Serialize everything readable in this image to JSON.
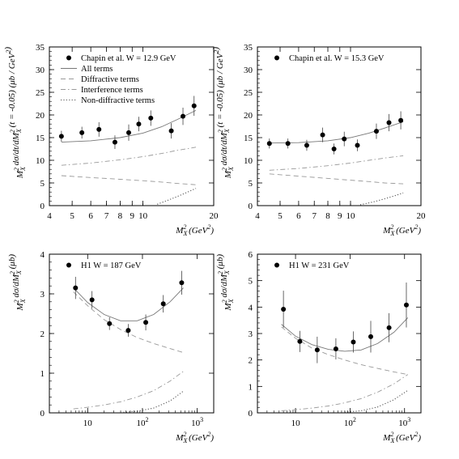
{
  "chart_data": [
    {
      "type": "scatter",
      "panel": "top-left",
      "xscale": "log",
      "xlim": [
        4,
        20
      ],
      "xticks": [
        4,
        5,
        6,
        7,
        8,
        9,
        10,
        20
      ],
      "xticklabels": [
        "4",
        "5",
        "6",
        "7",
        "8",
        "9",
        "10",
        "20"
      ],
      "ylim": [
        0,
        35
      ],
      "yticks": [
        0,
        5,
        10,
        15,
        20,
        25,
        30,
        35
      ],
      "xlabel": "M_X^2 (GeV^2)",
      "ylabel": "M_X^2 dσ/dt/dM_X^2 (t = -0.05) (μb / GeV^2)",
      "legend_position": "top-left",
      "legend": [
        "Chapin et al. W = 12.9 GeV",
        "All terms",
        "Diffractive terms",
        "Interference terms",
        "Non-diffractive terms"
      ],
      "points": {
        "name": "Chapin et al. W = 12.9 GeV",
        "x": [
          4.5,
          5.5,
          6.5,
          7.6,
          8.7,
          9.6,
          10.8,
          13.2,
          14.8,
          16.5
        ],
        "y": [
          15.3,
          16.1,
          16.8,
          14.0,
          16.1,
          18.0,
          19.3,
          16.5,
          19.7,
          22.0
        ],
        "err": [
          1.2,
          1.3,
          1.6,
          1.5,
          1.8,
          1.6,
          1.7,
          1.7,
          1.9,
          2.2
        ]
      },
      "curves": [
        {
          "name": "All terms",
          "style": "solid",
          "x": [
            4.5,
            6,
            8,
            10,
            12,
            14,
            16.8
          ],
          "y": [
            14.0,
            14.3,
            15.0,
            16.0,
            17.4,
            19.0,
            21.0
          ]
        },
        {
          "name": "Diffractive terms",
          "style": "dashed",
          "x": [
            4.5,
            6,
            8,
            10,
            12,
            14,
            16.8
          ],
          "y": [
            6.6,
            6.2,
            5.8,
            5.5,
            5.2,
            4.9,
            4.6
          ]
        },
        {
          "name": "Interference terms",
          "style": "dashdot",
          "x": [
            4.5,
            6,
            8,
            10,
            12,
            14,
            16.8
          ],
          "y": [
            8.9,
            9.4,
            10.1,
            10.8,
            11.5,
            12.2,
            12.9
          ]
        },
        {
          "name": "Non-diffractive terms",
          "style": "dotted",
          "x": [
            11.5,
            12.5,
            14,
            15.5,
            16.8
          ],
          "y": [
            0.3,
            1.0,
            2.0,
            3.0,
            3.8
          ]
        }
      ]
    },
    {
      "type": "scatter",
      "panel": "top-right",
      "xscale": "log",
      "xlim": [
        4,
        20
      ],
      "xticks": [
        4,
        5,
        6,
        7,
        8,
        9,
        10,
        20
      ],
      "xticklabels": [
        "4",
        "5",
        "6",
        "7",
        "8",
        "9",
        "10",
        "20"
      ],
      "ylim": [
        0,
        35
      ],
      "yticks": [
        0,
        5,
        10,
        15,
        20,
        25,
        30,
        35
      ],
      "xlabel": "M_X^2 (GeV^2)",
      "ylabel": "M_X^2 dσ/dt/dM_X^2 (t = -0.05) (μb / GeV^2)",
      "legend_position": "top-left",
      "legend": [
        "Chapin et al. W = 15.3 GeV"
      ],
      "points": {
        "name": "Chapin et al. W = 15.3 GeV",
        "x": [
          4.5,
          5.4,
          6.5,
          7.6,
          8.5,
          9.4,
          10.7,
          12.9,
          14.6,
          16.4
        ],
        "y": [
          13.7,
          13.7,
          13.3,
          15.6,
          12.5,
          14.7,
          13.3,
          16.4,
          18.3,
          18.8
        ],
        "err": [
          1.1,
          1.1,
          1.2,
          1.6,
          1.2,
          1.6,
          1.3,
          1.7,
          1.9,
          2.0
        ]
      },
      "curves": [
        {
          "name": "All terms",
          "style": "solid",
          "x": [
            4.5,
            6,
            8,
            10,
            12,
            14,
            16.8
          ],
          "y": [
            13.8,
            13.9,
            14.3,
            15.0,
            16.0,
            17.1,
            18.5
          ]
        },
        {
          "name": "Diffractive terms",
          "style": "dashed",
          "x": [
            4.5,
            6,
            8,
            10,
            12,
            14,
            16.8
          ],
          "y": [
            7.0,
            6.5,
            6.0,
            5.6,
            5.3,
            5.0,
            4.8
          ]
        },
        {
          "name": "Interference terms",
          "style": "dashdot",
          "x": [
            4.5,
            6,
            8,
            10,
            12,
            14,
            16.8
          ],
          "y": [
            7.8,
            8.2,
            8.8,
            9.4,
            10.0,
            10.5,
            11.0
          ]
        },
        {
          "name": "Non-diffractive terms",
          "style": "dotted",
          "x": [
            11.0,
            12.5,
            14,
            15.5,
            16.8
          ],
          "y": [
            0.2,
            0.8,
            1.5,
            2.2,
            2.8
          ]
        }
      ]
    },
    {
      "type": "scatter",
      "panel": "bottom-left",
      "xscale": "log",
      "xlim": [
        2,
        2000
      ],
      "xticks": [
        10,
        100,
        1000
      ],
      "xticklabels": [
        "10",
        "10²",
        "10³"
      ],
      "ylim": [
        0,
        4
      ],
      "yticks": [
        0,
        1,
        2,
        3,
        4
      ],
      "xlabel": "M_X^2 (GeV^2)",
      "ylabel": "M_X^2 dσ/dM_X^2 (μb)",
      "legend_position": "top-left",
      "legend": [
        "H1 W = 187 GeV"
      ],
      "points": {
        "name": "H1 W = 187 GeV",
        "x": [
          6,
          12,
          25,
          55,
          115,
          240,
          520
        ],
        "y": [
          3.15,
          2.85,
          2.25,
          2.08,
          2.28,
          2.75,
          3.28
        ],
        "err": [
          0.28,
          0.22,
          0.16,
          0.16,
          0.2,
          0.22,
          0.3
        ]
      },
      "curves": [
        {
          "name": "All terms",
          "style": "solid",
          "x": [
            5.5,
            10,
            20,
            40,
            80,
            160,
            320,
            560
          ],
          "y": [
            3.15,
            2.78,
            2.48,
            2.32,
            2.32,
            2.48,
            2.8,
            3.15
          ]
        },
        {
          "name": "Diffractive terms",
          "style": "dashed",
          "x": [
            5.5,
            10,
            20,
            40,
            80,
            160,
            320,
            560
          ],
          "y": [
            3.05,
            2.7,
            2.35,
            2.1,
            1.9,
            1.75,
            1.62,
            1.52
          ]
        },
        {
          "name": "Interference terms",
          "style": "dashdot",
          "x": [
            5.5,
            10,
            20,
            40,
            80,
            160,
            320,
            560
          ],
          "y": [
            0.1,
            0.14,
            0.2,
            0.28,
            0.4,
            0.56,
            0.8,
            1.05
          ]
        },
        {
          "name": "Non-diffractive terms",
          "style": "dotted",
          "x": [
            40,
            80,
            160,
            320,
            560
          ],
          "y": [
            0.01,
            0.04,
            0.12,
            0.3,
            0.55
          ]
        }
      ]
    },
    {
      "type": "scatter",
      "panel": "bottom-right",
      "xscale": "log",
      "xlim": [
        2,
        2000
      ],
      "xticks": [
        10,
        100,
        1000
      ],
      "xticklabels": [
        "10",
        "10²",
        "10³"
      ],
      "ylim": [
        0,
        6
      ],
      "yticks": [
        0,
        1,
        2,
        3,
        4,
        5,
        6
      ],
      "xlabel": "M_X^2 (GeV^2)",
      "ylabel": "M_X^2 dσ/dM_X^2 (μb)",
      "legend_position": "top-left",
      "legend": [
        "H1 W = 231 GeV"
      ],
      "points": {
        "name": "H1 W = 231 GeV",
        "x": [
          6,
          12,
          25,
          55,
          115,
          240,
          520,
          1080
        ],
        "y": [
          3.92,
          2.7,
          2.38,
          2.42,
          2.68,
          2.88,
          3.22,
          4.08
        ],
        "err": [
          0.7,
          0.4,
          0.5,
          0.4,
          0.4,
          0.6,
          0.55,
          0.85
        ]
      },
      "curves": [
        {
          "name": "All terms",
          "style": "solid",
          "x": [
            5.5,
            10,
            20,
            40,
            80,
            160,
            320,
            640,
            1150
          ],
          "y": [
            3.35,
            2.9,
            2.58,
            2.4,
            2.33,
            2.38,
            2.62,
            3.05,
            3.6
          ]
        },
        {
          "name": "Diffractive terms",
          "style": "dashed",
          "x": [
            5.5,
            10,
            20,
            40,
            80,
            160,
            320,
            640,
            1150
          ],
          "y": [
            3.25,
            2.82,
            2.45,
            2.2,
            2.0,
            1.82,
            1.68,
            1.55,
            1.45
          ]
        },
        {
          "name": "Interference terms",
          "style": "dashdot",
          "x": [
            5.5,
            10,
            20,
            40,
            80,
            160,
            320,
            640,
            1150
          ],
          "y": [
            0.08,
            0.12,
            0.18,
            0.26,
            0.38,
            0.54,
            0.78,
            1.1,
            1.45
          ]
        },
        {
          "name": "Non-diffractive terms",
          "style": "dotted",
          "x": [
            80,
            160,
            320,
            640,
            1150
          ],
          "y": [
            0.02,
            0.08,
            0.22,
            0.5,
            0.85
          ]
        }
      ]
    }
  ]
}
